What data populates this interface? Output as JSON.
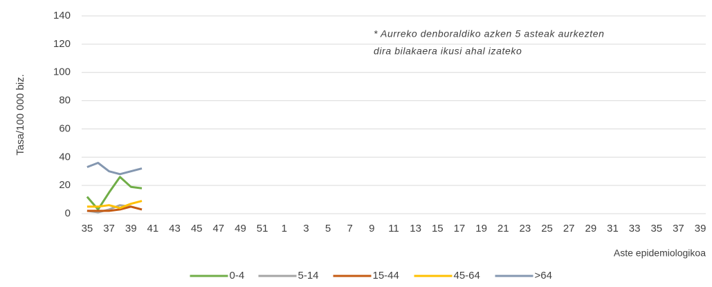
{
  "chart_data": {
    "type": "line",
    "y_label": "Tasa/100 000 biz.",
    "x_label": "Aste epidemiologikoa",
    "annotation": [
      "* Aurreko denboraldiko azken 5 asteak aurkezten",
      "dira bilakaera ikusi ahal izateko"
    ],
    "categories": [
      "35",
      null,
      "37",
      null,
      "39",
      null,
      "41",
      null,
      "43",
      null,
      "45",
      null,
      "47",
      null,
      "49",
      null,
      "51",
      null,
      "1",
      null,
      "3",
      null,
      "5",
      null,
      "7",
      null,
      "9",
      null,
      "11",
      null,
      "13",
      null,
      "15",
      null,
      "17",
      null,
      "19",
      null,
      "21",
      null,
      "23",
      null,
      "25",
      null,
      "27",
      null,
      "29",
      null,
      "31",
      null,
      "33",
      null,
      "35",
      null,
      "37",
      null,
      "39"
    ],
    "ylim": [
      0,
      140
    ],
    "yticks": [
      0,
      20,
      40,
      60,
      80,
      100,
      120,
      140
    ],
    "grid": true,
    "legend": "bottom",
    "series": [
      {
        "name": "0-4",
        "color": "#70ad47",
        "values": [
          12,
          3,
          15,
          26,
          19,
          18,
          null,
          null,
          null,
          null,
          null,
          null,
          null,
          null,
          null,
          null,
          null,
          null,
          null,
          null,
          null,
          null,
          null,
          null,
          null,
          null,
          null,
          null,
          null,
          null,
          null,
          null,
          null,
          null,
          null,
          null,
          null,
          null,
          null,
          null,
          null,
          null,
          null,
          null,
          null,
          null,
          null,
          null,
          null,
          null,
          null,
          null,
          null,
          null,
          null,
          null,
          null
        ]
      },
      {
        "name": "5-14",
        "color": "#a5a5a5",
        "values": [
          2,
          1,
          3,
          6,
          5,
          3,
          null,
          null,
          null,
          null,
          null,
          null,
          null,
          null,
          null,
          null,
          null,
          null,
          null,
          null,
          null,
          null,
          null,
          null,
          null,
          null,
          null,
          null,
          null,
          null,
          null,
          null,
          null,
          null,
          null,
          null,
          null,
          null,
          null,
          null,
          null,
          null,
          null,
          null,
          null,
          null,
          null,
          null,
          null,
          null,
          null,
          null,
          null,
          null,
          null,
          null,
          null
        ]
      },
      {
        "name": "15-44",
        "color": "#c55a11",
        "values": [
          2,
          2,
          2,
          3,
          5,
          3,
          null,
          null,
          null,
          null,
          null,
          null,
          null,
          null,
          null,
          null,
          null,
          null,
          null,
          null,
          null,
          null,
          null,
          null,
          null,
          null,
          null,
          null,
          null,
          null,
          null,
          null,
          null,
          null,
          null,
          null,
          null,
          null,
          null,
          null,
          null,
          null,
          null,
          null,
          null,
          null,
          null,
          null,
          null,
          null,
          null,
          null,
          null,
          null,
          null,
          null,
          null
        ]
      },
      {
        "name": "45-64",
        "color": "#ffc000",
        "values": [
          5,
          5,
          6,
          4,
          7,
          9,
          null,
          null,
          null,
          null,
          null,
          null,
          null,
          null,
          null,
          null,
          null,
          null,
          null,
          null,
          null,
          null,
          null,
          null,
          null,
          null,
          null,
          null,
          null,
          null,
          null,
          null,
          null,
          null,
          null,
          null,
          null,
          null,
          null,
          null,
          null,
          null,
          null,
          null,
          null,
          null,
          null,
          null,
          null,
          null,
          null,
          null,
          null,
          null,
          null,
          null,
          null
        ]
      },
      {
        "name": ">64",
        "color": "#8497b0",
        "values": [
          33,
          36,
          30,
          28,
          30,
          32,
          null,
          null,
          null,
          null,
          null,
          null,
          null,
          null,
          null,
          null,
          null,
          null,
          null,
          null,
          null,
          null,
          null,
          null,
          null,
          null,
          null,
          null,
          null,
          null,
          null,
          null,
          null,
          null,
          null,
          null,
          null,
          null,
          null,
          null,
          null,
          null,
          null,
          null,
          null,
          null,
          null,
          null,
          null,
          null,
          null,
          null,
          null,
          null,
          null,
          null,
          null
        ]
      }
    ]
  }
}
